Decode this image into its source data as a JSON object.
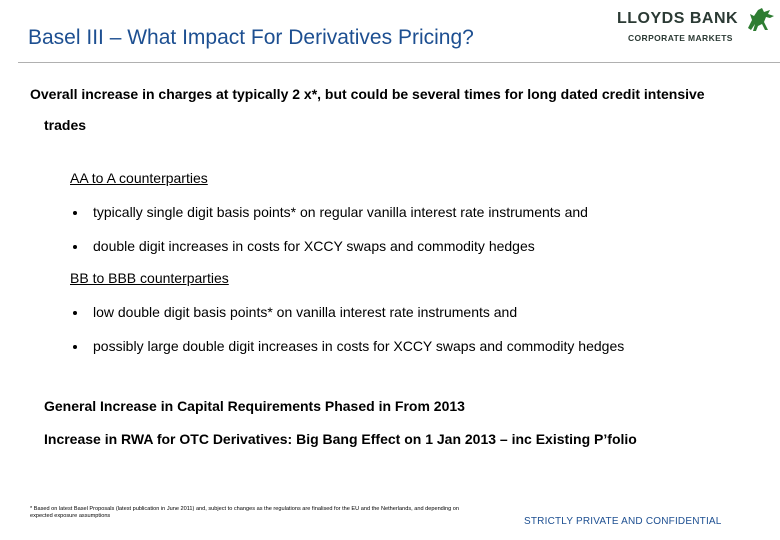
{
  "header": {
    "title": "Basel III – What Impact For Derivatives Pricing?",
    "logo": {
      "name": "LLOYDS BANK",
      "division": "CORPORATE MARKETS"
    }
  },
  "intro": "Overall increase in charges at typically 2 x*, but could be several times for long dated credit intensive trades",
  "sections": [
    {
      "heading": "AA to A counterparties",
      "bullets": [
        "typically single digit basis points* on regular vanilla interest rate instruments and",
        "double digit increases in costs for XCCY swaps and commodity hedges"
      ]
    },
    {
      "heading": "BB to BBB counterparties",
      "bullets": [
        "low double digit basis points* on vanilla interest rate instruments and",
        "possibly large double digit increases in costs for XCCY swaps and commodity hedges"
      ]
    }
  ],
  "points": [
    "General Increase in Capital Requirements Phased in From 2013",
    "Increase in RWA for OTC Derivatives: Big Bang Effect on 1 Jan 2013 – inc Existing P’folio"
  ],
  "footnote": "* Based on latest Basel Proposals (latest publication in June 2011) and, subject to changes as the regulations are finalised for the EU and the Netherlands, and depending on expected exposure assumptions",
  "classification": "STRICTLY PRIVATE AND CONFIDENTIAL"
}
